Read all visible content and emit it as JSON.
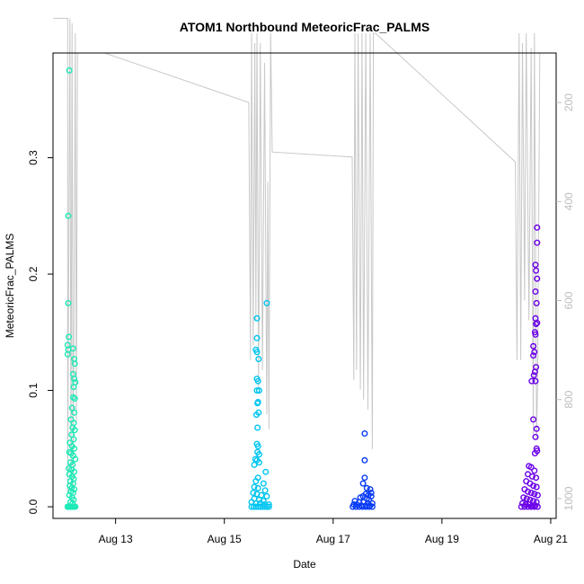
{
  "chart_data": {
    "type": "scatter",
    "title": "ATOM1 Northbound MeteoricFrac_PALMS",
    "xlabel": "Date",
    "ylabel": "MeteoricFrac_PALMS",
    "x_range_days": [
      11.85,
      21.1
    ],
    "y_range": [
      -0.01,
      0.39
    ],
    "y_ticks": [
      0.0,
      0.1,
      0.2,
      0.3
    ],
    "y_tick_labels": [
      "0.0",
      "0.1",
      "0.2",
      "0.3"
    ],
    "x_ticks": [
      13,
      15,
      17,
      19,
      21
    ],
    "x_tick_labels": [
      "Aug 13",
      "Aug 15",
      "Aug 17",
      "Aug 19",
      "Aug 21"
    ],
    "right_axis": {
      "range_inverted": [
        1040,
        100
      ],
      "ticks": [
        200,
        400,
        600,
        800,
        1000
      ],
      "tick_labels": [
        "200",
        "400",
        "600",
        "800",
        "1000"
      ],
      "color": "#bdbdbd"
    },
    "grid": false,
    "legend": "none",
    "flights": [
      {
        "color": "#1de9b6",
        "points": [
          [
            12.15,
            0.375
          ],
          [
            12.13,
            0.25
          ],
          [
            12.13,
            0.175
          ],
          [
            12.14,
            0.146
          ],
          [
            12.12,
            0.139
          ],
          [
            12.13,
            0.135
          ],
          [
            12.12,
            0.131
          ],
          [
            12.22,
            0.136
          ],
          [
            12.24,
            0.127
          ],
          [
            12.25,
            0.123
          ],
          [
            12.22,
            0.114
          ],
          [
            12.24,
            0.11
          ],
          [
            12.26,
            0.107
          ],
          [
            12.23,
            0.103
          ],
          [
            12.22,
            0.094
          ],
          [
            12.25,
            0.093
          ],
          [
            12.2,
            0.085
          ],
          [
            12.24,
            0.081
          ],
          [
            12.18,
            0.075
          ],
          [
            12.23,
            0.072
          ],
          [
            12.21,
            0.068
          ],
          [
            12.25,
            0.066
          ],
          [
            12.19,
            0.062
          ],
          [
            12.23,
            0.058
          ],
          [
            12.16,
            0.055
          ],
          [
            12.2,
            0.052
          ],
          [
            12.24,
            0.05
          ],
          [
            12.15,
            0.047
          ],
          [
            12.18,
            0.046
          ],
          [
            12.22,
            0.044
          ],
          [
            12.26,
            0.041
          ],
          [
            12.17,
            0.038
          ],
          [
            12.21,
            0.036
          ],
          [
            12.14,
            0.033
          ],
          [
            12.19,
            0.032
          ],
          [
            12.24,
            0.03
          ],
          [
            12.15,
            0.028
          ],
          [
            12.2,
            0.026
          ],
          [
            12.23,
            0.024
          ],
          [
            12.17,
            0.022
          ],
          [
            12.22,
            0.02
          ],
          [
            12.16,
            0.018
          ],
          [
            12.19,
            0.016
          ],
          [
            12.24,
            0.015
          ],
          [
            12.18,
            0.013
          ],
          [
            12.22,
            0.012
          ],
          [
            12.15,
            0.01
          ],
          [
            12.2,
            0.008
          ],
          [
            12.23,
            0.006
          ],
          [
            12.17,
            0.004
          ],
          [
            12.21,
            0.003
          ],
          [
            12.12,
            0.0
          ],
          [
            12.14,
            0.0
          ],
          [
            12.16,
            0.0
          ],
          [
            12.18,
            0.0
          ],
          [
            12.2,
            0.0
          ],
          [
            12.22,
            0.0
          ],
          [
            12.24,
            0.0
          ],
          [
            12.26,
            0.0
          ]
        ]
      },
      {
        "color": "#00c5f0",
        "points": [
          [
            15.78,
            0.175
          ],
          [
            15.6,
            0.162
          ],
          [
            15.6,
            0.145
          ],
          [
            15.58,
            0.135
          ],
          [
            15.6,
            0.133
          ],
          [
            15.63,
            0.127
          ],
          [
            15.6,
            0.11
          ],
          [
            15.62,
            0.108
          ],
          [
            15.6,
            0.1
          ],
          [
            15.64,
            0.1
          ],
          [
            15.62,
            0.09
          ],
          [
            15.61,
            0.089
          ],
          [
            15.63,
            0.081
          ],
          [
            15.59,
            0.079
          ],
          [
            15.61,
            0.068
          ],
          [
            15.6,
            0.054
          ],
          [
            15.62,
            0.052
          ],
          [
            15.61,
            0.047
          ],
          [
            15.64,
            0.045
          ],
          [
            15.57,
            0.041
          ],
          [
            15.6,
            0.04
          ],
          [
            15.64,
            0.038
          ],
          [
            15.55,
            0.036
          ],
          [
            15.76,
            0.03
          ],
          [
            15.62,
            0.025
          ],
          [
            15.58,
            0.022
          ],
          [
            15.72,
            0.02
          ],
          [
            15.55,
            0.017
          ],
          [
            15.62,
            0.016
          ],
          [
            15.75,
            0.014
          ],
          [
            15.53,
            0.012
          ],
          [
            15.6,
            0.011
          ],
          [
            15.68,
            0.01
          ],
          [
            15.78,
            0.009
          ],
          [
            15.55,
            0.007
          ],
          [
            15.64,
            0.006
          ],
          [
            15.72,
            0.005
          ],
          [
            15.5,
            0.004
          ],
          [
            15.58,
            0.003
          ],
          [
            15.66,
            0.003
          ],
          [
            15.74,
            0.002
          ],
          [
            15.82,
            0.002
          ],
          [
            15.5,
            0.0
          ],
          [
            15.54,
            0.0
          ],
          [
            15.58,
            0.0
          ],
          [
            15.62,
            0.0
          ],
          [
            15.66,
            0.0
          ],
          [
            15.7,
            0.0
          ],
          [
            15.74,
            0.0
          ],
          [
            15.78,
            0.0
          ],
          [
            15.82,
            0.0
          ]
        ]
      },
      {
        "color": "#0a3cf5",
        "points": [
          [
            17.58,
            0.063
          ],
          [
            17.58,
            0.04
          ],
          [
            17.58,
            0.025
          ],
          [
            17.55,
            0.02
          ],
          [
            17.62,
            0.016
          ],
          [
            17.68,
            0.015
          ],
          [
            17.7,
            0.012
          ],
          [
            17.6,
            0.011
          ],
          [
            17.65,
            0.01
          ],
          [
            17.55,
            0.009
          ],
          [
            17.7,
            0.009
          ],
          [
            17.5,
            0.008
          ],
          [
            17.62,
            0.007
          ],
          [
            17.66,
            0.006
          ],
          [
            17.4,
            0.005
          ],
          [
            17.48,
            0.004
          ],
          [
            17.56,
            0.004
          ],
          [
            17.64,
            0.003
          ],
          [
            17.72,
            0.003
          ],
          [
            17.38,
            0.002
          ],
          [
            17.44,
            0.002
          ],
          [
            17.52,
            0.001
          ],
          [
            17.6,
            0.001
          ],
          [
            17.68,
            0.001
          ],
          [
            17.36,
            0.0
          ],
          [
            17.42,
            0.0
          ],
          [
            17.48,
            0.0
          ],
          [
            17.54,
            0.0
          ],
          [
            17.6,
            0.0
          ],
          [
            17.66,
            0.0
          ],
          [
            17.72,
            0.0
          ]
        ]
      },
      {
        "color": "#6a00e8",
        "points": [
          [
            20.75,
            0.24
          ],
          [
            20.75,
            0.227
          ],
          [
            20.72,
            0.208
          ],
          [
            20.73,
            0.203
          ],
          [
            20.75,
            0.196
          ],
          [
            20.72,
            0.185
          ],
          [
            20.74,
            0.175
          ],
          [
            20.72,
            0.162
          ],
          [
            20.75,
            0.158
          ],
          [
            20.73,
            0.157
          ],
          [
            20.71,
            0.15
          ],
          [
            20.72,
            0.148
          ],
          [
            20.68,
            0.138
          ],
          [
            20.7,
            0.133
          ],
          [
            20.68,
            0.13
          ],
          [
            20.73,
            0.12
          ],
          [
            20.71,
            0.116
          ],
          [
            20.69,
            0.113
          ],
          [
            20.65,
            0.108
          ],
          [
            20.72,
            0.108
          ],
          [
            20.68,
            0.075
          ],
          [
            20.74,
            0.067
          ],
          [
            20.72,
            0.06
          ],
          [
            20.74,
            0.05
          ],
          [
            20.75,
            0.048
          ],
          [
            20.71,
            0.046
          ],
          [
            20.6,
            0.035
          ],
          [
            20.64,
            0.034
          ],
          [
            20.7,
            0.031
          ],
          [
            20.58,
            0.028
          ],
          [
            20.66,
            0.026
          ],
          [
            20.73,
            0.025
          ],
          [
            20.55,
            0.022
          ],
          [
            20.62,
            0.02
          ],
          [
            20.68,
            0.018
          ],
          [
            20.74,
            0.017
          ],
          [
            20.52,
            0.015
          ],
          [
            20.58,
            0.013
          ],
          [
            20.64,
            0.012
          ],
          [
            20.7,
            0.011
          ],
          [
            20.76,
            0.01
          ],
          [
            20.5,
            0.008
          ],
          [
            20.56,
            0.007
          ],
          [
            20.62,
            0.006
          ],
          [
            20.68,
            0.005
          ],
          [
            20.74,
            0.004
          ],
          [
            20.48,
            0.003
          ],
          [
            20.54,
            0.002
          ],
          [
            20.6,
            0.002
          ],
          [
            20.66,
            0.001
          ],
          [
            20.72,
            0.001
          ],
          [
            20.46,
            0.0
          ],
          [
            20.52,
            0.0
          ],
          [
            20.58,
            0.0
          ],
          [
            20.64,
            0.0
          ],
          [
            20.7,
            0.0
          ],
          [
            20.76,
            0.0
          ]
        ]
      }
    ],
    "pressure_trace": {
      "color": "#c8c8c8",
      "points": [
        [
          11.85,
          30
        ],
        [
          12.12,
          30
        ],
        [
          12.12,
          990
        ],
        [
          12.16,
          30
        ],
        [
          12.18,
          950
        ],
        [
          12.2,
          40
        ],
        [
          12.22,
          980
        ],
        [
          12.26,
          60
        ],
        [
          12.28,
          850
        ],
        [
          12.3,
          100
        ],
        [
          12.8,
          100
        ],
        [
          15.45,
          200
        ],
        [
          15.48,
          720
        ],
        [
          15.5,
          60
        ],
        [
          15.53,
          690
        ],
        [
          15.56,
          80
        ],
        [
          15.58,
          640
        ],
        [
          15.6,
          60
        ],
        [
          15.63,
          780
        ],
        [
          15.66,
          80
        ],
        [
          15.7,
          740
        ],
        [
          15.74,
          120
        ],
        [
          15.78,
          830
        ],
        [
          15.8,
          360
        ],
        [
          15.82,
          860
        ],
        [
          15.85,
          60
        ],
        [
          15.88,
          300
        ],
        [
          17.35,
          310
        ],
        [
          17.38,
          760
        ],
        [
          17.4,
          60
        ],
        [
          17.43,
          740
        ],
        [
          17.46,
          60
        ],
        [
          17.5,
          780
        ],
        [
          17.53,
          60
        ],
        [
          17.56,
          800
        ],
        [
          17.6,
          60
        ],
        [
          17.64,
          820
        ],
        [
          17.68,
          60
        ],
        [
          17.72,
          900
        ],
        [
          17.74,
          60
        ],
        [
          17.78,
          60
        ],
        [
          20.35,
          320
        ],
        [
          20.38,
          720
        ],
        [
          20.42,
          60
        ],
        [
          20.45,
          720
        ],
        [
          20.48,
          80
        ],
        [
          20.52,
          600
        ],
        [
          20.55,
          60
        ],
        [
          20.6,
          640
        ],
        [
          20.64,
          90
        ],
        [
          20.68,
          870
        ],
        [
          20.7,
          60
        ],
        [
          20.74,
          880
        ],
        [
          20.76,
          760
        ],
        [
          20.8,
          100
        ]
      ]
    }
  }
}
